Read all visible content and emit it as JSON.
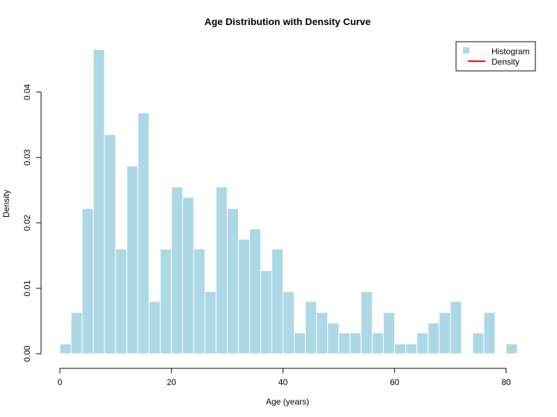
{
  "chart_data": {
    "type": "bar",
    "title": "Age Distribution with Density Curve",
    "xlabel": "Age (years)",
    "ylabel": "Density",
    "xlim": [
      0,
      82
    ],
    "ylim": [
      0,
      0.046
    ],
    "bin_width": 2,
    "bins_start": 0,
    "values": [
      0.0015,
      0.0063,
      0.0222,
      0.0465,
      0.0335,
      0.016,
      0.0287,
      0.0368,
      0.008,
      0.016,
      0.0255,
      0.0239,
      0.016,
      0.0095,
      0.0255,
      0.0222,
      0.0175,
      0.0191,
      0.0127,
      0.016,
      0.0095,
      0.0032,
      0.008,
      0.0063,
      0.0047,
      0.0032,
      0.0032,
      0.0095,
      0.0032,
      0.0063,
      0.0015,
      0.0015,
      0.0032,
      0.0047,
      0.0063,
      0.008,
      0.0,
      0.0032,
      0.0063,
      0.0,
      0.0015
    ],
    "x_ticks": [
      "0",
      "20",
      "40",
      "60",
      "80"
    ],
    "y_ticks": [
      "0.00",
      "0.01",
      "0.02",
      "0.03",
      "0.04"
    ],
    "legend": {
      "position": "top-right",
      "items": [
        {
          "label": "Histogram",
          "color": "#add8e6",
          "kind": "box"
        },
        {
          "label": "Density",
          "color": "#ff0000",
          "kind": "line"
        }
      ]
    },
    "bar_color": "#add8e6",
    "bar_border": "#ffffff"
  }
}
